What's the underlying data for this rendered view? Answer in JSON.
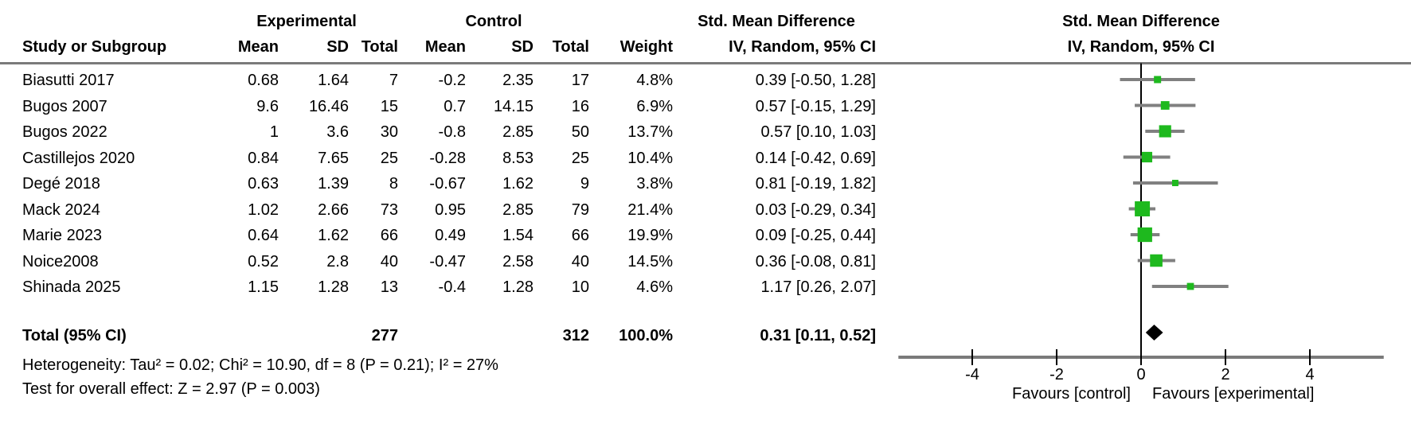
{
  "headers": {
    "experimental": "Experimental",
    "control": "Control",
    "smd_left": "Std. Mean Difference",
    "smd_right": "Std. Mean Difference",
    "study": "Study or Subgroup",
    "mean": "Mean",
    "sd": "SD",
    "total": "Total",
    "weight": "Weight",
    "iv_left": "IV, Random, 95% CI",
    "iv_right": "IV, Random, 95% CI"
  },
  "footers": {
    "heterogeneity": "Heterogeneity: Tau² = 0.02; Chi² = 10.90, df = 8 (P = 0.21); I² = 27%",
    "overall_effect": "Test for overall effect: Z = 2.97 (P = 0.003)"
  },
  "chart_data": {
    "type": "forest",
    "effect_measure": "Std. Mean Difference, IV, Random, 95% CI",
    "studies": [
      {
        "study": "Biasutti 2017",
        "exp_mean": "0.68",
        "exp_sd": "1.64",
        "exp_total": "7",
        "ctl_mean": "-0.2",
        "ctl_sd": "2.35",
        "ctl_total": "17",
        "weight": "4.8%",
        "smd_ci": "0.39 [-0.50, 1.28]",
        "est": 0.39,
        "lo": -0.5,
        "hi": 1.28,
        "w": 4.8
      },
      {
        "study": "Bugos 2007",
        "exp_mean": "9.6",
        "exp_sd": "16.46",
        "exp_total": "15",
        "ctl_mean": "0.7",
        "ctl_sd": "14.15",
        "ctl_total": "16",
        "weight": "6.9%",
        "smd_ci": "0.57 [-0.15, 1.29]",
        "est": 0.57,
        "lo": -0.15,
        "hi": 1.29,
        "w": 6.9
      },
      {
        "study": "Bugos 2022",
        "exp_mean": "1",
        "exp_sd": "3.6",
        "exp_total": "30",
        "ctl_mean": "-0.8",
        "ctl_sd": "2.85",
        "ctl_total": "50",
        "weight": "13.7%",
        "smd_ci": "0.57 [0.10, 1.03]",
        "est": 0.57,
        "lo": 0.1,
        "hi": 1.03,
        "w": 13.7
      },
      {
        "study": "Castillejos 2020",
        "exp_mean": "0.84",
        "exp_sd": "7.65",
        "exp_total": "25",
        "ctl_mean": "-0.28",
        "ctl_sd": "8.53",
        "ctl_total": "25",
        "weight": "10.4%",
        "smd_ci": "0.14 [-0.42, 0.69]",
        "est": 0.14,
        "lo": -0.42,
        "hi": 0.69,
        "w": 10.4
      },
      {
        "study": "Degé 2018",
        "exp_mean": "0.63",
        "exp_sd": "1.39",
        "exp_total": "8",
        "ctl_mean": "-0.67",
        "ctl_sd": "1.62",
        "ctl_total": "9",
        "weight": "3.8%",
        "smd_ci": "0.81 [-0.19, 1.82]",
        "est": 0.81,
        "lo": -0.19,
        "hi": 1.82,
        "w": 3.8
      },
      {
        "study": "Mack 2024",
        "exp_mean": "1.02",
        "exp_sd": "2.66",
        "exp_total": "73",
        "ctl_mean": "0.95",
        "ctl_sd": "2.85",
        "ctl_total": "79",
        "weight": "21.4%",
        "smd_ci": "0.03 [-0.29, 0.34]",
        "est": 0.03,
        "lo": -0.29,
        "hi": 0.34,
        "w": 21.4
      },
      {
        "study": "Marie 2023",
        "exp_mean": "0.64",
        "exp_sd": "1.62",
        "exp_total": "66",
        "ctl_mean": "0.49",
        "ctl_sd": "1.54",
        "ctl_total": "66",
        "weight": "19.9%",
        "smd_ci": "0.09 [-0.25, 0.44]",
        "est": 0.09,
        "lo": -0.25,
        "hi": 0.44,
        "w": 19.9
      },
      {
        "study": "Noice2008",
        "exp_mean": "0.52",
        "exp_sd": "2.8",
        "exp_total": "40",
        "ctl_mean": "-0.47",
        "ctl_sd": "2.58",
        "ctl_total": "40",
        "weight": "14.5%",
        "smd_ci": "0.36 [-0.08, 0.81]",
        "est": 0.36,
        "lo": -0.08,
        "hi": 0.81,
        "w": 14.5
      },
      {
        "study": "Shinada 2025",
        "exp_mean": "1.15",
        "exp_sd": "1.28",
        "exp_total": "13",
        "ctl_mean": "-0.4",
        "ctl_sd": "1.28",
        "ctl_total": "10",
        "weight": "4.6%",
        "smd_ci": "1.17 [0.26, 2.07]",
        "est": 1.17,
        "lo": 0.26,
        "hi": 2.07,
        "w": 4.6
      }
    ],
    "total": {
      "label": "Total (95% CI)",
      "exp_total": "277",
      "ctl_total": "312",
      "weight": "100.0%",
      "smd_ci": "0.31 [0.11, 0.52]",
      "est": 0.31,
      "lo": 0.11,
      "hi": 0.52
    },
    "axis": {
      "ticks": [
        -4,
        -2,
        0,
        2,
        4
      ],
      "xmin": -5.75,
      "xmax": 5.75,
      "favours_left": "Favours [control]",
      "favours_right": "Favours [experimental]"
    },
    "colors": {
      "square": "#1eb91e",
      "ci_line": "#808080",
      "axis": "#7a7a7a",
      "rule": "#7a7a7a",
      "zero_line": "#000000",
      "diamond": "#000000"
    }
  }
}
